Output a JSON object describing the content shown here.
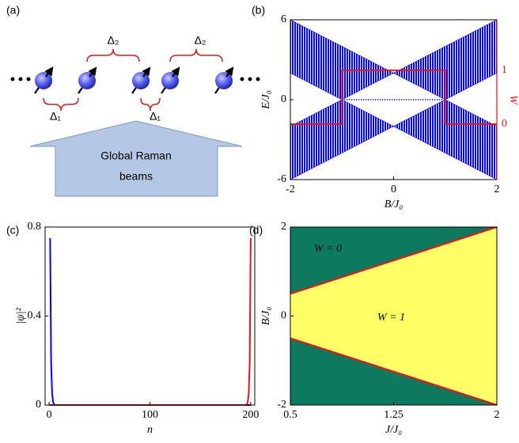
{
  "diagram": {
    "label": "(a)",
    "top_gaps": [
      "Δ₂",
      "Δ₂"
    ],
    "bottom_gaps": [
      "Δ₁",
      "Δ₁"
    ],
    "beam_label": [
      "Global Raman",
      "beams"
    ]
  },
  "chart_data": [
    {
      "type": "band",
      "label": "(b)",
      "xlabel": "B/J₀",
      "ylabel": "E/J₀",
      "y2label": "W",
      "x": [
        -2,
        -1.5,
        -1,
        -0.5,
        0,
        0.5,
        1,
        1.5,
        2
      ],
      "bands": [
        {
          "color": "#0000ff",
          "low": [
            2,
            1,
            0,
            1,
            2,
            1,
            0,
            1,
            2
          ],
          "high": [
            6,
            5,
            4,
            3,
            2,
            3,
            4,
            5,
            6
          ]
        },
        {
          "color": "#0000ff",
          "low": [
            -6,
            -5,
            -4,
            -3,
            -2,
            -3,
            -4,
            -5,
            -6
          ],
          "high": [
            -2,
            -1,
            0,
            -1,
            -2,
            -1,
            0,
            -1,
            -2
          ]
        }
      ],
      "edge_modes": {
        "color": "#0000ff",
        "x": [
          -1,
          1
        ],
        "values": [
          0,
          0
        ]
      },
      "winding": {
        "color": "#e8141c",
        "axis": "y2",
        "x": [
          -2,
          -1,
          -1,
          1,
          1,
          2
        ],
        "values": [
          0,
          0,
          1,
          1,
          0,
          0
        ]
      },
      "xlim": [
        -2,
        2
      ],
      "ylim": [
        -6,
        6
      ],
      "y2lim": [
        -1.03,
        1.94
      ],
      "xticks": [
        -2,
        0,
        2
      ],
      "yticks": [
        -6,
        0,
        6
      ],
      "y2ticks": [
        0,
        1
      ]
    },
    {
      "type": "line",
      "label": "(c)",
      "xlabel": "n",
      "ylabel": "|ψ|²",
      "series": [
        {
          "color": "#0000ff",
          "x": [
            1,
            2,
            3,
            4,
            5,
            6,
            200
          ],
          "values": [
            0.75,
            0.19,
            0.05,
            0.012,
            0.003,
            0,
            0
          ]
        },
        {
          "color": "#e8141c",
          "x": [
            0,
            195,
            196,
            197,
            198,
            199,
            200
          ],
          "values": [
            0,
            0,
            0.003,
            0.012,
            0.05,
            0.19,
            0.75
          ]
        }
      ],
      "xlim": [
        -4,
        204
      ],
      "ylim": [
        0,
        0.8
      ],
      "xticks": [
        0,
        100,
        200
      ],
      "yticks": [
        0,
        0.4,
        0.8
      ]
    },
    {
      "type": "phase",
      "label": "(d)",
      "xlabel": "J/J₀",
      "ylabel": "B/J₀",
      "regions": [
        {
          "label": "W = 0",
          "color": "#0b7a5e"
        },
        {
          "label": "W = 1",
          "color": "#ffff66"
        }
      ],
      "boundary": {
        "color": "#e8141c",
        "x": [
          0.5,
          2
        ],
        "upper": [
          0.5,
          2
        ],
        "lower": [
          -0.5,
          -2
        ]
      },
      "xlim": [
        0.5,
        2
      ],
      "ylim": [
        -2,
        2
      ],
      "xticks": [
        0.5,
        1.25,
        2
      ],
      "yticks": [
        -2,
        0,
        2
      ]
    }
  ]
}
